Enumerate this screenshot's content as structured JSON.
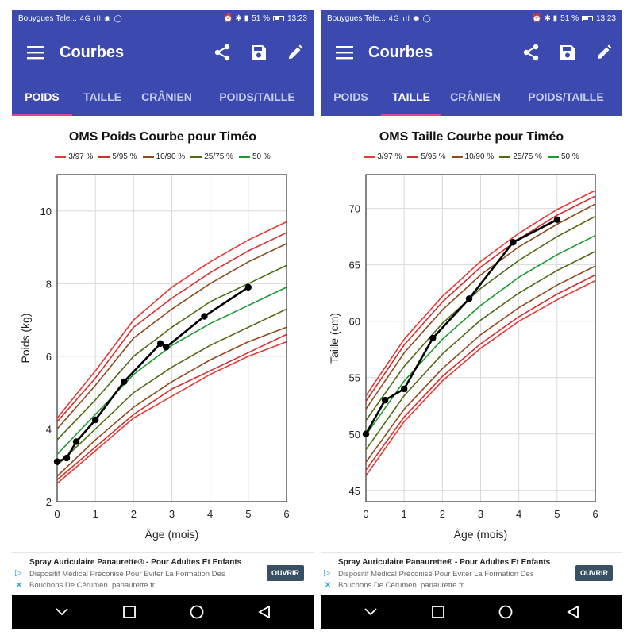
{
  "status": {
    "carrier": "Bouygues Tele...",
    "signal_icons": "4G ıll ◉ ◯",
    "battery_text": "51 %",
    "time": "13:23"
  },
  "appbar": {
    "title": "Courbes",
    "icons": [
      "menu-icon",
      "share-icon",
      "save-icon",
      "edit-icon"
    ]
  },
  "tabs": [
    "POIDS",
    "TAILLE",
    "CRÂNIEN",
    "POIDS/TAILLE"
  ],
  "legend": [
    {
      "label": "3/97 %",
      "color": "#e53935"
    },
    {
      "label": "5/95 %",
      "color": "#d32f2f"
    },
    {
      "label": "10/90 %",
      "color": "#8d4a1c"
    },
    {
      "label": "25/75 %",
      "color": "#4d6b12"
    },
    {
      "label": "50 %",
      "color": "#1b9a2e"
    }
  ],
  "ad": {
    "title": "Spray Auriculaire Panaurette® - Pour Adultes Et Enfants",
    "body": "Dispositif Médical Préconisé Pour Eviter La Formation Des Bouchons De Cérumen. panaurette.fr",
    "button": "OUVRIR"
  },
  "screens": [
    {
      "active_tab": 0
    },
    {
      "active_tab": 1
    }
  ],
  "chart_data": [
    {
      "type": "line",
      "title": "OMS Poids Courbe pour Timéo",
      "xlabel": "Âge (mois)",
      "ylabel": "Poids (kg)",
      "xlim": [
        0,
        6
      ],
      "ylim": [
        2,
        11
      ],
      "xticks": [
        0,
        1,
        2,
        3,
        4,
        5,
        6
      ],
      "yticks": [
        2,
        4,
        6,
        8,
        10
      ],
      "grid": true,
      "legend_position": "top",
      "reference_curves": [
        {
          "name": "3/97 %",
          "color": "#e53935",
          "lower": [
            2.5,
            3.4,
            4.3,
            4.9,
            5.5,
            6.0,
            6.4
          ],
          "upper": [
            4.3,
            5.6,
            7.0,
            7.9,
            8.6,
            9.2,
            9.7
          ]
        },
        {
          "name": "5/95 %",
          "color": "#d32f2f",
          "lower": [
            2.6,
            3.5,
            4.4,
            5.1,
            5.6,
            6.1,
            6.6
          ],
          "upper": [
            4.2,
            5.4,
            6.8,
            7.6,
            8.3,
            8.9,
            9.4
          ]
        },
        {
          "name": "10/90 %",
          "color": "#8d4a1c",
          "lower": [
            2.7,
            3.7,
            4.6,
            5.3,
            5.9,
            6.4,
            6.8
          ],
          "upper": [
            4.0,
            5.2,
            6.5,
            7.3,
            8.0,
            8.6,
            9.1
          ]
        },
        {
          "name": "25/75 %",
          "color": "#4d6b12",
          "lower": [
            3.0,
            4.0,
            5.0,
            5.7,
            6.3,
            6.8,
            7.3
          ],
          "upper": [
            3.7,
            4.8,
            6.0,
            6.8,
            7.5,
            8.0,
            8.5
          ]
        },
        {
          "name": "50 %",
          "color": "#1b9a2e",
          "values": [
            3.3,
            4.4,
            5.5,
            6.3,
            6.9,
            7.4,
            7.9
          ]
        }
      ],
      "measurements": {
        "x": [
          0,
          0.25,
          0.5,
          1,
          1.75,
          2.7,
          2.85,
          3.85,
          5
        ],
        "y": [
          3.1,
          3.2,
          3.65,
          4.25,
          5.3,
          6.35,
          6.25,
          7.1,
          7.9
        ]
      }
    },
    {
      "type": "line",
      "title": "OMS Taille Courbe pour Timéo",
      "xlabel": "Âge (mois)",
      "ylabel": "Taille (cm)",
      "xlim": [
        0,
        6
      ],
      "ylim": [
        44,
        73
      ],
      "xticks": [
        0,
        1,
        2,
        3,
        4,
        5,
        6
      ],
      "yticks": [
        45,
        50,
        55,
        60,
        65,
        70
      ],
      "grid": true,
      "legend_position": "top",
      "reference_curves": [
        {
          "name": "3/97 %",
          "color": "#e53935",
          "lower": [
            46.3,
            51.1,
            54.7,
            57.6,
            60.0,
            61.9,
            63.6
          ],
          "upper": [
            53.4,
            58.4,
            62.2,
            65.3,
            67.8,
            69.9,
            71.6
          ]
        },
        {
          "name": "5/95 %",
          "color": "#d32f2f",
          "lower": [
            46.8,
            51.5,
            55.1,
            58.0,
            60.4,
            62.4,
            64.1
          ],
          "upper": [
            52.9,
            57.9,
            61.7,
            64.8,
            67.3,
            69.4,
            71.1
          ]
        },
        {
          "name": "10/90 %",
          "color": "#8d4a1c",
          "lower": [
            47.5,
            52.2,
            55.8,
            58.8,
            61.2,
            63.2,
            64.9
          ],
          "upper": [
            52.2,
            57.2,
            61.0,
            64.1,
            66.6,
            68.6,
            70.4
          ]
        },
        {
          "name": "25/75 %",
          "color": "#4d6b12",
          "lower": [
            48.6,
            53.4,
            57.1,
            60.1,
            62.5,
            64.5,
            66.2
          ],
          "upper": [
            51.2,
            56.0,
            59.8,
            62.9,
            65.4,
            67.5,
            69.3
          ]
        },
        {
          "name": "50 %",
          "color": "#1b9a2e",
          "values": [
            49.9,
            54.7,
            58.4,
            61.4,
            63.9,
            65.9,
            67.6
          ]
        }
      ],
      "measurements": {
        "x": [
          0,
          0.5,
          1,
          1.75,
          2.7,
          3.85,
          5
        ],
        "y": [
          50,
          53,
          54,
          58.5,
          62,
          67,
          69
        ]
      }
    }
  ]
}
